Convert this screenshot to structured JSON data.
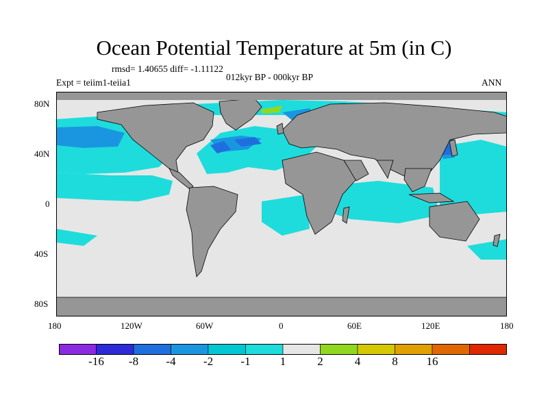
{
  "title": "Ocean Potential Temperature at 5m (in C)",
  "stats": {
    "rmsd_diff": "rmsd= 1.40655 diff= -1.11122",
    "period": "012kyr BP - 000kyr BP",
    "experiment": "Expt = teiim1-teiia1",
    "season": "ANN"
  },
  "axes": {
    "y_ticks": [
      "80N",
      "40N",
      "0",
      "40S",
      "80S"
    ],
    "x_ticks": [
      "180",
      "120W",
      "60W",
      "0",
      "60E",
      "120E",
      "180"
    ]
  },
  "legend": {
    "colors": [
      "#8a2be2",
      "#2d2ad8",
      "#1f6ede",
      "#1a96e0",
      "#00c8d2",
      "#1edcdc",
      "#e6e6e6",
      "#90d820",
      "#d4c800",
      "#e0a000",
      "#e06800",
      "#e02800"
    ],
    "labels": [
      "-16",
      "-8",
      "-4",
      "-2",
      "-1",
      "1",
      "2",
      "4",
      "8",
      "16"
    ]
  },
  "colors": {
    "land": "#969696",
    "ocean_neutral": "#e6e6e6",
    "cyan_band": "#1edcdc",
    "light_blue": "#1a96e0",
    "mid_blue": "#1f6ede",
    "green": "#90d820"
  }
}
